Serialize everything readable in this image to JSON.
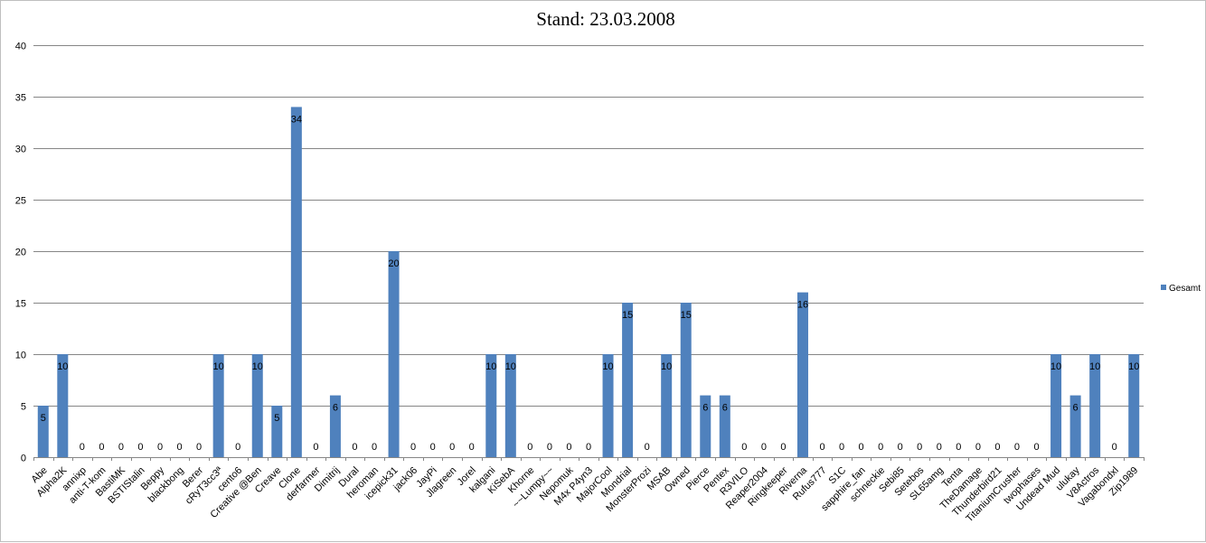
{
  "chart_data": {
    "type": "bar",
    "title": "Stand: 23.03.2008",
    "xlabel": "",
    "ylabel": "",
    "ylim": [
      0,
      40
    ],
    "yticks": [
      0,
      5,
      10,
      15,
      20,
      25,
      30,
      35,
      40
    ],
    "grid": true,
    "legend_position": "right",
    "bar_color": "#4f81bd",
    "categories": [
      "Abe",
      "Alpha2K",
      "annixp",
      "anti-T-kom",
      "BastiMK",
      "BSTIStalin",
      "Beppy",
      "blackbong",
      "Berer",
      "cRyT3cc3ª",
      "cento6",
      "Creative @Ben",
      "Creave",
      "Clone",
      "derfarmer",
      "Dimitrij",
      "Dural",
      "heroman",
      "icepick31",
      "jack06",
      "JayPi",
      "Jlagreen",
      "Jorel",
      "kalgani",
      "KiSebA",
      "Khorne",
      "~~Lumpy~~",
      "Nepomuk",
      "M4x P4yn3",
      "MajorCool",
      "Mondrial",
      "MonsterProzi",
      "MSAB",
      "Owned",
      "Pierce",
      "Pentex",
      "R3VILO",
      "Reaper2004",
      "Ringkeeper",
      "Riverna",
      "Rufus777",
      "S1C",
      "sapphire_fan",
      "schneckie",
      "Sebi85",
      "Setebos",
      "SL65amg",
      "Tenta",
      "TheDamage",
      "Thunderbird21",
      "TitaniumCrusher",
      "twophases",
      "Undead Mud",
      "ulukay",
      "V8Actros",
      "Vagabondxl",
      "Zip1989"
    ],
    "series": [
      {
        "name": "Gesamt",
        "values": [
          5,
          10,
          0,
          0,
          0,
          0,
          0,
          0,
          0,
          10,
          0,
          10,
          5,
          34,
          0,
          6,
          0,
          0,
          20,
          0,
          0,
          0,
          0,
          10,
          10,
          0,
          0,
          0,
          0,
          10,
          15,
          0,
          10,
          15,
          6,
          6,
          0,
          0,
          0,
          16,
          0,
          0,
          0,
          0,
          0,
          0,
          0,
          0,
          0,
          0,
          0,
          0,
          10,
          6,
          10,
          0,
          10
        ]
      }
    ]
  }
}
